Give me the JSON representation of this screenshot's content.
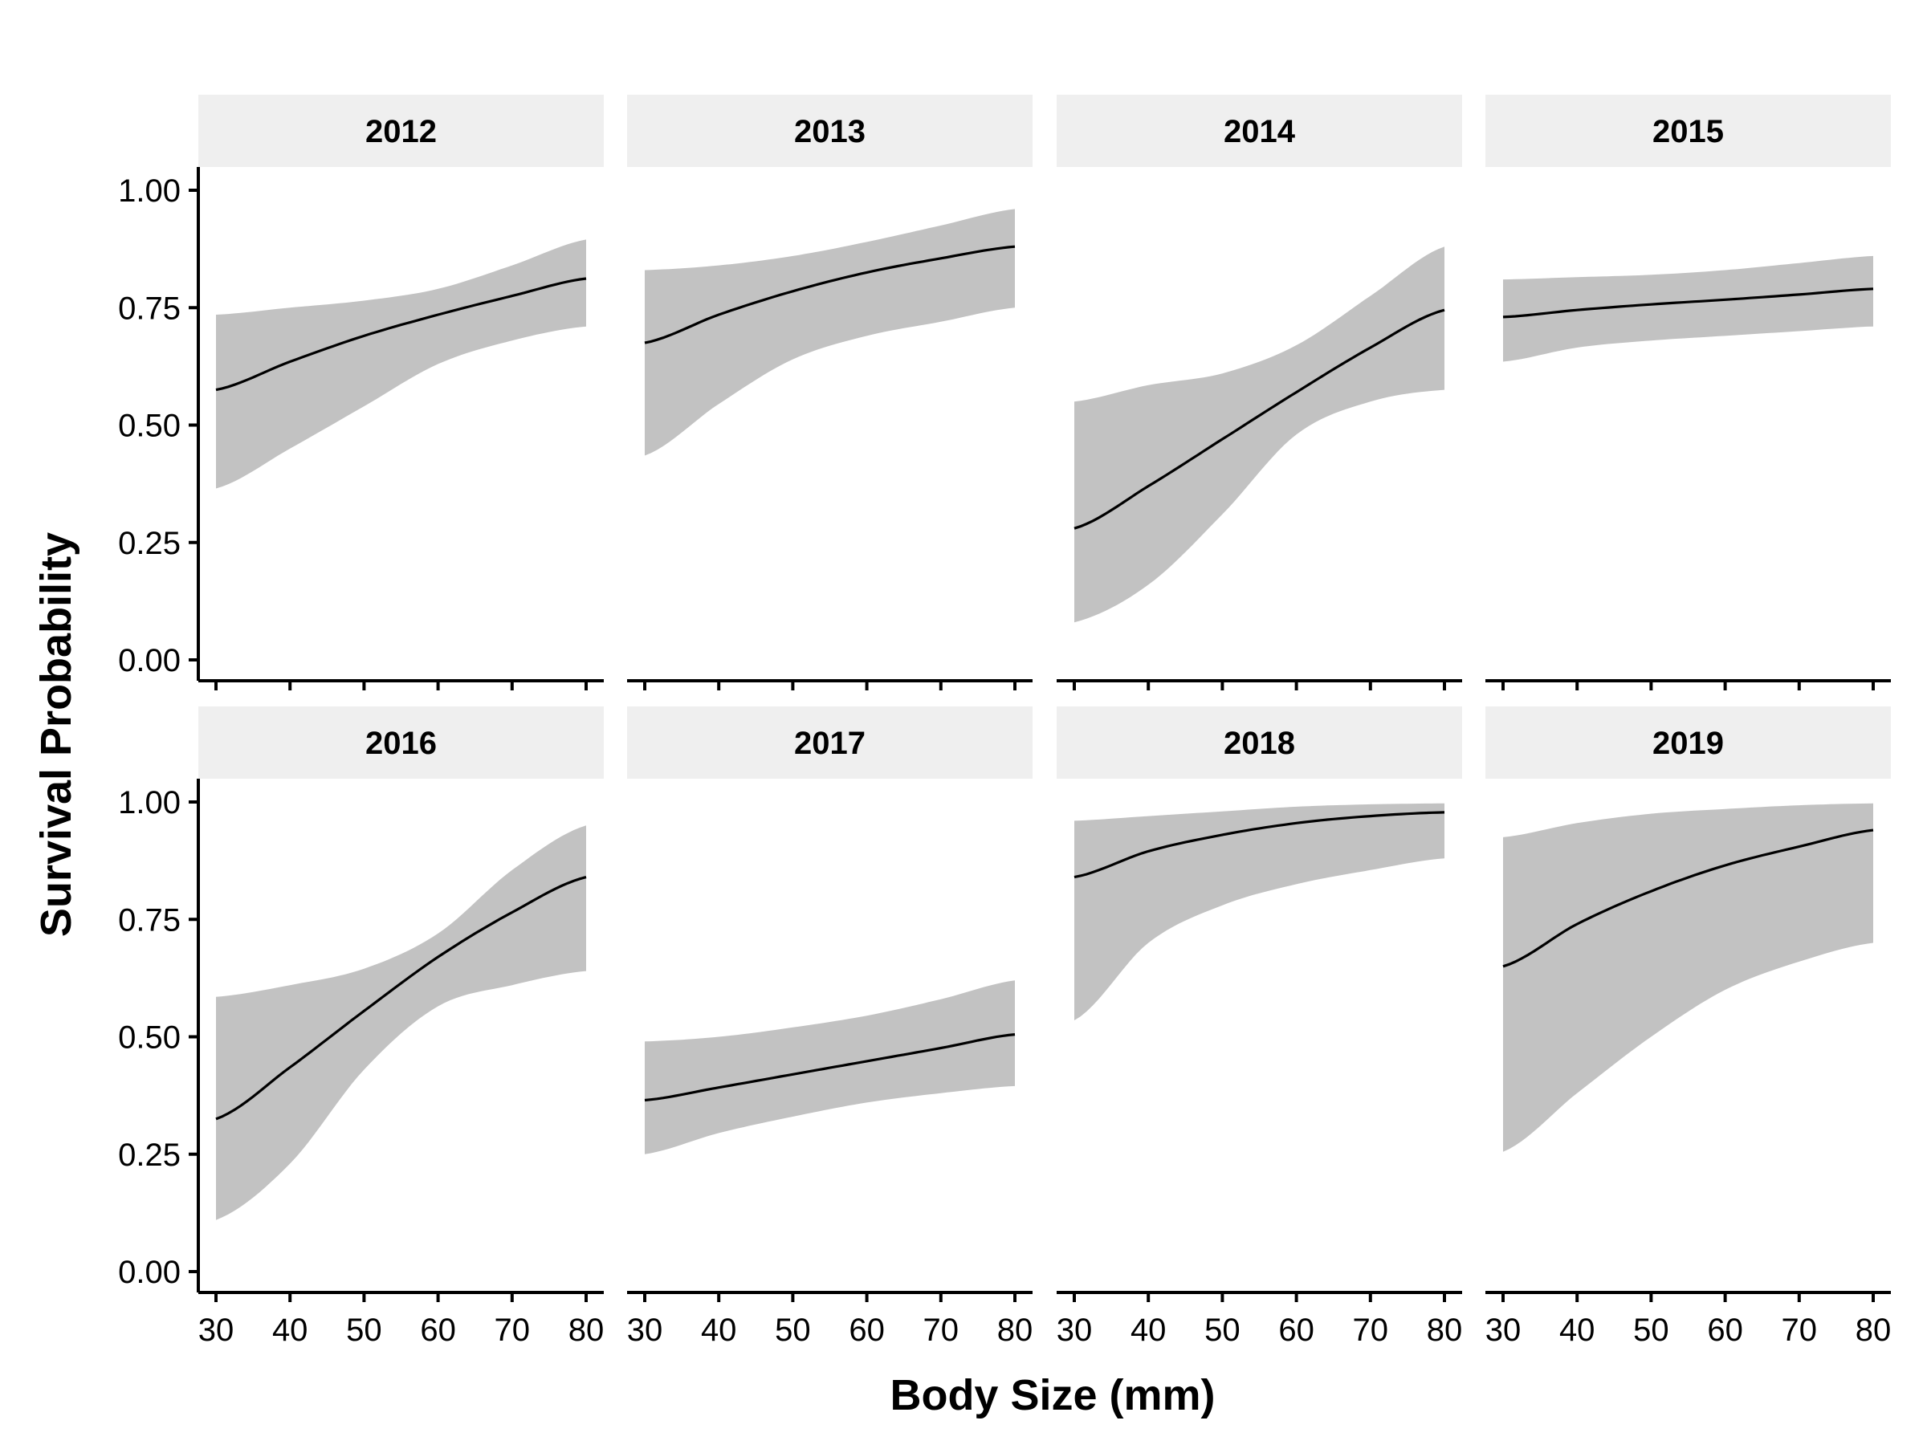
{
  "chart_data": {
    "type": "line",
    "facet_type": "line with confidence band",
    "xlabel": "Body Size (mm)",
    "ylabel": "Survival Probability",
    "xlim": [
      30,
      80
    ],
    "ylim": [
      0,
      1
    ],
    "x_ticks": [
      30,
      40,
      50,
      60,
      70,
      80
    ],
    "y_ticks": [
      0,
      0.25,
      0.5,
      0.75,
      1.0
    ],
    "x_tick_labels": [
      "30",
      "40",
      "50",
      "60",
      "70",
      "80"
    ],
    "y_tick_labels": [
      "0.00",
      "0.25",
      "0.50",
      "0.75",
      "1.00"
    ],
    "grid": false,
    "band_color": "#c2c2c2",
    "line_color": "#000000",
    "strip_color": "#efefef",
    "panels": [
      {
        "label": "2012",
        "x": [
          30,
          40,
          50,
          60,
          70,
          80
        ],
        "fit": [
          0.575,
          0.635,
          0.69,
          0.735,
          0.775,
          0.812
        ],
        "lower": [
          0.365,
          0.45,
          0.54,
          0.63,
          0.68,
          0.71
        ],
        "upper": [
          0.735,
          0.75,
          0.765,
          0.79,
          0.84,
          0.895
        ]
      },
      {
        "label": "2013",
        "x": [
          30,
          40,
          50,
          60,
          70,
          80
        ],
        "fit": [
          0.675,
          0.735,
          0.785,
          0.825,
          0.855,
          0.88
        ],
        "lower": [
          0.435,
          0.545,
          0.64,
          0.69,
          0.72,
          0.75
        ],
        "upper": [
          0.83,
          0.84,
          0.86,
          0.89,
          0.925,
          0.96
        ]
      },
      {
        "label": "2014",
        "x": [
          30,
          40,
          50,
          60,
          70,
          80
        ],
        "fit": [
          0.28,
          0.37,
          0.47,
          0.57,
          0.665,
          0.745
        ],
        "lower": [
          0.08,
          0.16,
          0.31,
          0.48,
          0.55,
          0.575
        ],
        "upper": [
          0.55,
          0.585,
          0.61,
          0.67,
          0.775,
          0.88
        ]
      },
      {
        "label": "2015",
        "x": [
          30,
          40,
          50,
          60,
          70,
          80
        ],
        "fit": [
          0.73,
          0.745,
          0.757,
          0.767,
          0.778,
          0.79
        ],
        "lower": [
          0.635,
          0.665,
          0.68,
          0.69,
          0.7,
          0.71
        ],
        "upper": [
          0.81,
          0.815,
          0.82,
          0.83,
          0.845,
          0.86
        ]
      },
      {
        "label": "2016",
        "x": [
          30,
          40,
          50,
          60,
          70,
          80
        ],
        "fit": [
          0.325,
          0.435,
          0.555,
          0.67,
          0.765,
          0.84
        ],
        "lower": [
          0.11,
          0.23,
          0.43,
          0.565,
          0.61,
          0.64
        ],
        "upper": [
          0.585,
          0.61,
          0.645,
          0.72,
          0.855,
          0.95
        ]
      },
      {
        "label": "2017",
        "x": [
          30,
          40,
          50,
          60,
          70,
          80
        ],
        "fit": [
          0.365,
          0.392,
          0.42,
          0.448,
          0.476,
          0.505
        ],
        "lower": [
          0.25,
          0.295,
          0.33,
          0.36,
          0.38,
          0.395
        ],
        "upper": [
          0.49,
          0.5,
          0.52,
          0.545,
          0.58,
          0.62
        ]
      },
      {
        "label": "2018",
        "x": [
          30,
          40,
          50,
          60,
          70,
          80
        ],
        "fit": [
          0.84,
          0.895,
          0.93,
          0.955,
          0.97,
          0.978
        ],
        "lower": [
          0.535,
          0.7,
          0.78,
          0.825,
          0.855,
          0.88
        ],
        "upper": [
          0.96,
          0.97,
          0.98,
          0.99,
          0.995,
          0.997
        ]
      },
      {
        "label": "2019",
        "x": [
          30,
          40,
          50,
          60,
          70,
          80
        ],
        "fit": [
          0.65,
          0.74,
          0.81,
          0.865,
          0.905,
          0.94
        ],
        "lower": [
          0.255,
          0.38,
          0.5,
          0.6,
          0.66,
          0.7
        ],
        "upper": [
          0.925,
          0.955,
          0.975,
          0.985,
          0.993,
          0.997
        ]
      }
    ]
  }
}
